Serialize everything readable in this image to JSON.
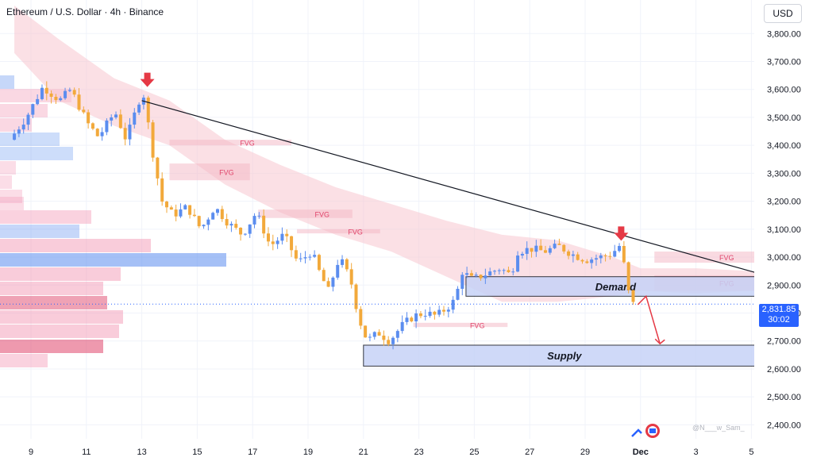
{
  "header": {
    "title": "Ethereum / U.S. Dollar · 4h · Binance",
    "currency": "USD"
  },
  "price_label": {
    "price": "2,831.85",
    "countdown": "30:02"
  },
  "watermark": "@N___w_Sam_",
  "colors": {
    "up": "#5b8def",
    "down": "#f2a93b",
    "cloud": "#f7c6cf",
    "demand": "#c7d3f7",
    "supply": "#c7d6f7",
    "arrow": "#e53945",
    "fvg_text": "#e0456b"
  },
  "chart_data": {
    "type": "candlestick",
    "title": "Ethereum / U.S. Dollar · 4h · Binance",
    "ylim": [
      2350,
      3920
    ],
    "y_ticks": [
      "3,800.00",
      "3,700.00",
      "3,600.00",
      "3,500.00",
      "3,400.00",
      "3,300.00",
      "3,200.00",
      "3,100.00",
      "3,000.00",
      "2,900.00",
      "2,800.00",
      "2,700.00",
      "2,600.00",
      "2,500.00",
      "2,400.00"
    ],
    "y_tick_values": [
      3800,
      3700,
      3600,
      3500,
      3400,
      3300,
      3200,
      3100,
      3000,
      2900,
      2800,
      2700,
      2600,
      2500,
      2400
    ],
    "x_ticks": [
      "9",
      "11",
      "13",
      "15",
      "17",
      "19",
      "21",
      "23",
      "25",
      "27",
      "29",
      "Dec",
      "3",
      "5"
    ],
    "x_tick_days": [
      9,
      11,
      13,
      15,
      17,
      19,
      21,
      23,
      25,
      27,
      29,
      31,
      33,
      35
    ],
    "current_price": 2831.85,
    "price_path": [
      [
        8.4,
        3420
      ],
      [
        9.0,
        3500
      ],
      [
        9.6,
        3610
      ],
      [
        10.2,
        3560
      ],
      [
        10.6,
        3600
      ],
      [
        11.2,
        3480
      ],
      [
        11.6,
        3430
      ],
      [
        12.2,
        3520
      ],
      [
        12.6,
        3420
      ],
      [
        13.2,
        3600
      ],
      [
        13.6,
        3350
      ],
      [
        13.9,
        3200
      ],
      [
        14.3,
        3150
      ],
      [
        14.8,
        3180
      ],
      [
        15.3,
        3100
      ],
      [
        15.8,
        3180
      ],
      [
        16.3,
        3120
      ],
      [
        16.8,
        3080
      ],
      [
        17.3,
        3160
      ],
      [
        17.8,
        3040
      ],
      [
        18.3,
        3080
      ],
      [
        18.8,
        2980
      ],
      [
        19.3,
        3020
      ],
      [
        19.6,
        2940
      ],
      [
        19.9,
        2880
      ],
      [
        20.3,
        3000
      ],
      [
        20.7,
        2920
      ],
      [
        21.0,
        2780
      ],
      [
        21.3,
        2700
      ],
      [
        21.7,
        2730
      ],
      [
        22.1,
        2700
      ],
      [
        22.6,
        2760
      ],
      [
        23.0,
        2790
      ],
      [
        23.4,
        2800
      ],
      [
        23.8,
        2790
      ],
      [
        24.2,
        2820
      ],
      [
        24.5,
        2850
      ],
      [
        24.7,
        2950
      ],
      [
        25.1,
        2920
      ],
      [
        25.6,
        2940
      ],
      [
        26.1,
        2960
      ],
      [
        26.5,
        2935
      ],
      [
        26.7,
        3020
      ],
      [
        27.2,
        3030
      ],
      [
        27.7,
        3020
      ],
      [
        28.2,
        3040
      ],
      [
        28.7,
        3010
      ],
      [
        29.2,
        2990
      ],
      [
        29.7,
        3000
      ],
      [
        30.1,
        3010
      ],
      [
        30.4,
        3040
      ],
      [
        30.6,
        2960
      ],
      [
        30.8,
        2832
      ]
    ],
    "trendline": [
      [
        13.0,
        3560
      ],
      [
        35.5,
        2935
      ]
    ],
    "demand_zone": {
      "label": "Demand",
      "from": 24.7,
      "to": 35.5,
      "low": 2860,
      "high": 2930
    },
    "supply_zone": {
      "label": "Supply",
      "from": 21.0,
      "to": 35.5,
      "low": 2610,
      "high": 2685
    },
    "fvg_zones": [
      {
        "label": "FVG",
        "from": 14.0,
        "to": 18.4,
        "low": 3400,
        "high": 3420
      },
      {
        "label": "FVG",
        "from": 14.0,
        "to": 16.9,
        "low": 3275,
        "high": 3335
      },
      {
        "label": "FVG",
        "from": 17.2,
        "to": 20.6,
        "low": 3140,
        "high": 3170
      },
      {
        "label": "FVG",
        "from": 18.6,
        "to": 21.6,
        "low": 3085,
        "high": 3100
      },
      {
        "label": "FVG",
        "from": 22.8,
        "to": 26.2,
        "low": 2750,
        "high": 2765
      },
      {
        "label": "FVG",
        "from": 31.5,
        "to": 35.5,
        "low": 2980,
        "high": 3020
      },
      {
        "label": "FVG",
        "from": 31.5,
        "to": 35.5,
        "low": 2880,
        "high": 2935
      }
    ],
    "cloud_upper": [
      [
        8.4,
        3900
      ],
      [
        10,
        3780
      ],
      [
        12,
        3640
      ],
      [
        14,
        3560
      ],
      [
        16,
        3420
      ],
      [
        18,
        3330
      ],
      [
        20,
        3250
      ],
      [
        22,
        3190
      ],
      [
        24,
        3130
      ],
      [
        26,
        3080
      ],
      [
        28,
        3060
      ],
      [
        30,
        3000
      ],
      [
        31,
        2960
      ],
      [
        33,
        2960
      ],
      [
        35,
        2950
      ],
      [
        36,
        2930
      ]
    ],
    "cloud_lower": [
      [
        8.4,
        3730
      ],
      [
        10,
        3560
      ],
      [
        12,
        3470
      ],
      [
        14,
        3400
      ],
      [
        16,
        3260
      ],
      [
        18,
        3160
      ],
      [
        20,
        3080
      ],
      [
        22,
        3020
      ],
      [
        24,
        2930
      ],
      [
        26,
        2840
      ],
      [
        28,
        2840
      ],
      [
        30,
        2860
      ],
      [
        31,
        2880
      ],
      [
        33,
        2870
      ],
      [
        35,
        2880
      ],
      [
        36,
        2870
      ]
    ],
    "signal_arrows_down": [
      [
        13.2,
        3620
      ],
      [
        30.3,
        3070
      ]
    ],
    "projection_path": [
      [
        30.9,
        2830
      ],
      [
        31.2,
        2860
      ],
      [
        31.7,
        2690
      ]
    ]
  }
}
